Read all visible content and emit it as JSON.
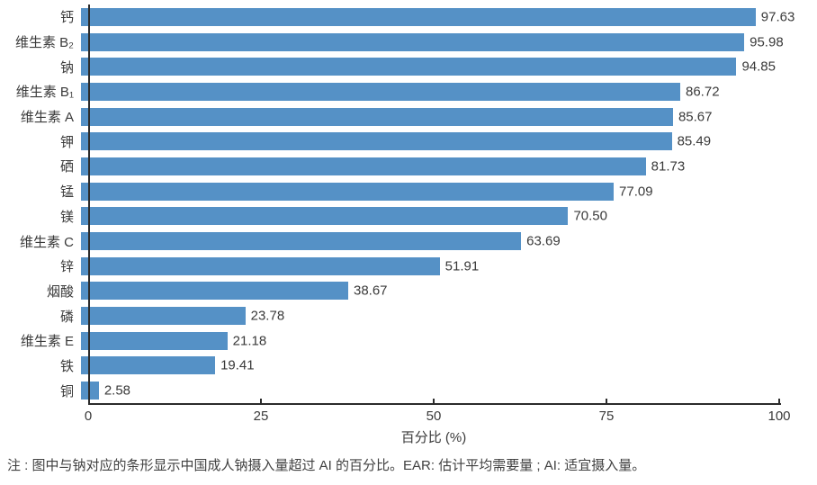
{
  "figure": {
    "note": "注 : 图中与钠对应的条形显示中国成人钠摄入量超过 AI 的百分比。EAR: 估计平均需要量 ; AI: 适宜摄入量。"
  },
  "chart_data": {
    "type": "bar",
    "orientation": "horizontal",
    "title": "",
    "xlabel": "百分比 (%)",
    "ylabel": "",
    "xlim": [
      0,
      100
    ],
    "xticks": [
      0,
      25,
      50,
      75,
      100
    ],
    "grid": false,
    "legend": null,
    "bar_color": "#5591C6",
    "categories": [
      "钙",
      "维生素 B₂",
      "钠",
      "维生素 B₁",
      "维生素 A",
      "钾",
      "硒",
      "锰",
      "镁",
      "维生素 C",
      "锌",
      "烟酸",
      "磷",
      "维生素 E",
      "铁",
      "铜"
    ],
    "values": [
      97.63,
      95.98,
      94.85,
      86.72,
      85.67,
      85.49,
      81.73,
      77.09,
      70.5,
      63.69,
      51.91,
      38.67,
      23.78,
      21.18,
      19.41,
      2.58
    ],
    "value_labels": [
      "97.63",
      "95.98",
      "94.85",
      "86.72",
      "85.67",
      "85.49",
      "81.73",
      "77.09",
      "70.50",
      "63.69",
      "51.91",
      "38.67",
      "23.78",
      "21.18",
      "19.41",
      "2.58"
    ]
  }
}
